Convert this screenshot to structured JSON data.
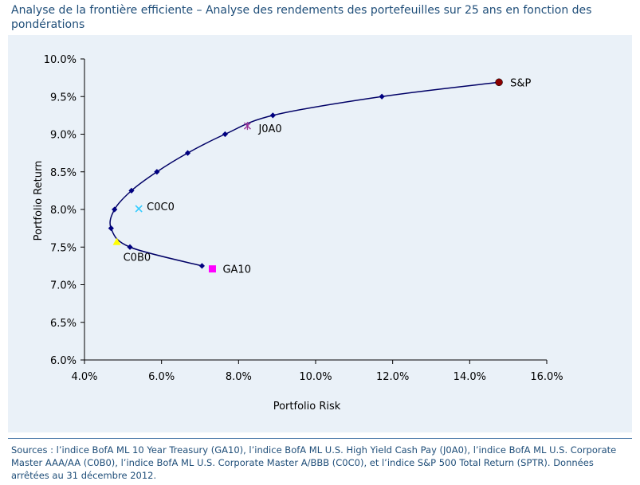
{
  "title": "Analyse de la frontière efficiente – Analyse des rendements des portefeuilles sur 25 ans en fonction des pondérations",
  "sources": "Sources : l’indice BofA ML 10 Year Treasury (GA10), l’indice BofA ML U.S. High Yield Cash Pay (J0A0), l’indice BofA ML U.S. Corporate Master AAA/AA (C0B0), l’indice BofA ML U.S. Corporate Master A/BBB (C0C0), et l’indice S&P 500 Total Return (SPTR). Données arrêtées au 31 décembre 2012.",
  "colors": {
    "frontier": "#000066",
    "frontier_marker": "#000080",
    "sp": "#8b0000",
    "j0a0": "#993399",
    "c0c0": "#33ccff",
    "c0b0": "#ffff00",
    "ga10": "#ff00ff",
    "panel": "#eaf1f8",
    "text": "#1f4e79"
  },
  "chart_data": {
    "type": "scatter",
    "title": "",
    "xlabel": "Portfolio Risk",
    "ylabel": "Portfolio Return",
    "xlim": [
      0.04,
      0.16
    ],
    "ylim": [
      0.06,
      0.1
    ],
    "x_ticks": [
      0.04,
      0.06,
      0.08,
      0.1,
      0.12,
      0.14,
      0.16
    ],
    "x_tick_labels": [
      "4.0%",
      "6.0%",
      "8.0%",
      "10.0%",
      "12.0%",
      "14.0%",
      "16.0%"
    ],
    "y_ticks": [
      0.06,
      0.065,
      0.07,
      0.075,
      0.08,
      0.085,
      0.09,
      0.095,
      0.1
    ],
    "y_tick_labels": [
      "6.0%",
      "6.5%",
      "7.0%",
      "7.5%",
      "8.0%",
      "8.5%",
      "9.0%",
      "9.5%",
      "10.0%"
    ],
    "grid": false,
    "series": [
      {
        "marker": "diamond",
        "line": "smooth",
        "points": [
          {
            "x": 0.0705,
            "y": 0.0725
          },
          {
            "x": 0.0518,
            "y": 0.075
          },
          {
            "x": 0.0469,
            "y": 0.0775
          },
          {
            "x": 0.0478,
            "y": 0.08
          },
          {
            "x": 0.0522,
            "y": 0.0825
          },
          {
            "x": 0.0588,
            "y": 0.085
          },
          {
            "x": 0.0668,
            "y": 0.0875
          },
          {
            "x": 0.0765,
            "y": 0.09
          },
          {
            "x": 0.0889,
            "y": 0.0925
          },
          {
            "x": 0.1172,
            "y": 0.095
          },
          {
            "x": 0.1476,
            "y": 0.0969
          }
        ]
      }
    ],
    "labeled_points": [
      {
        "label": "S&P",
        "x": 0.1476,
        "y": 0.0969,
        "marker": "circle",
        "color": "#8b0000",
        "label_dx": 14,
        "label_dy": 5
      },
      {
        "label": "J0A0",
        "x": 0.0823,
        "y": 0.0911,
        "marker": "star",
        "color": "#993399",
        "label_dx": 14,
        "label_dy": 8
      },
      {
        "label": "C0C0",
        "x": 0.0541,
        "y": 0.0801,
        "marker": "x",
        "color": "#33ccff",
        "label_dx": 10,
        "label_dy": 2
      },
      {
        "label": "C0B0",
        "x": 0.0484,
        "y": 0.0757,
        "marker": "triangle",
        "color": "#ffff00",
        "label_dx": 8,
        "label_dy": 24
      },
      {
        "label": "GA10",
        "x": 0.0732,
        "y": 0.0721,
        "marker": "square",
        "color": "#ff00ff",
        "label_dx": 13,
        "label_dy": 5
      }
    ]
  }
}
